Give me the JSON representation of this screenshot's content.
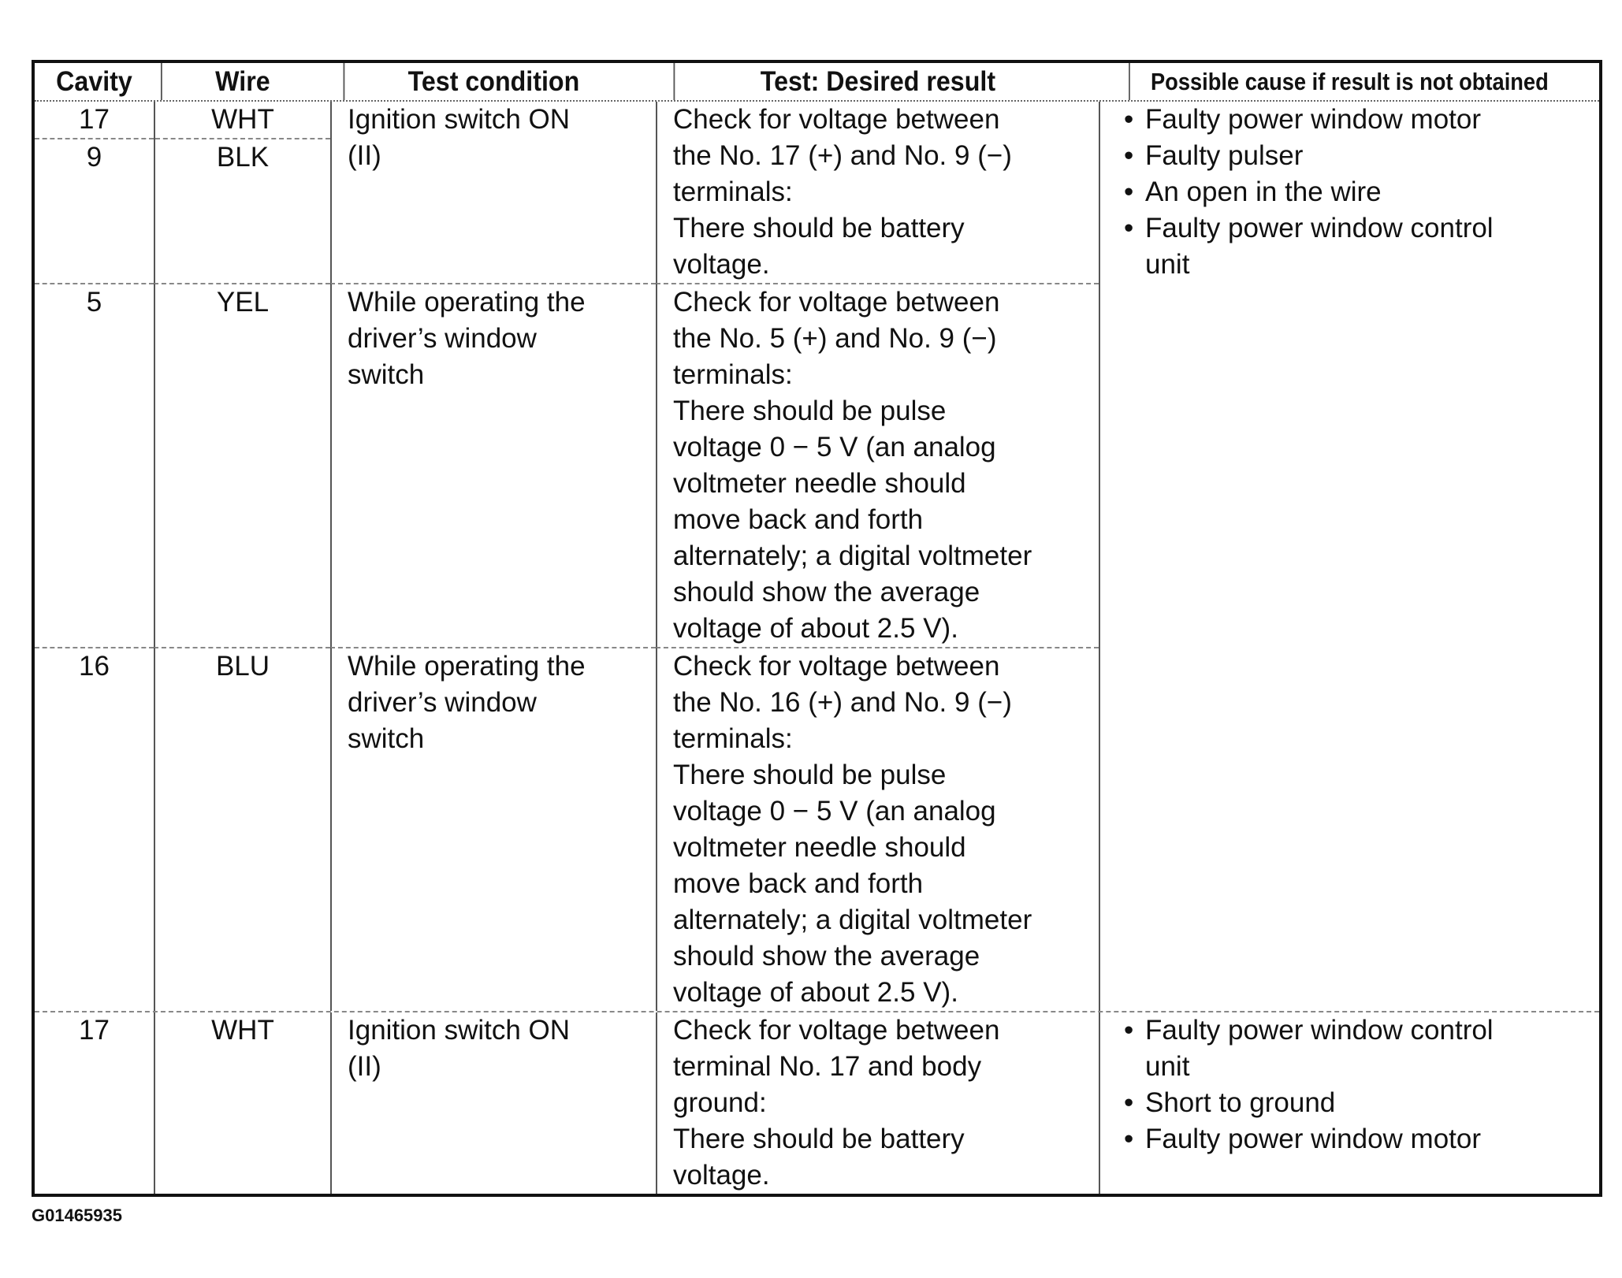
{
  "headers": [
    "Cavity",
    "Wire",
    "Test condition",
    "Test: Desired result",
    "Possible cause if result is not obtained"
  ],
  "rows": [
    {
      "cavity": [
        "17",
        "9"
      ],
      "wire": [
        "WHT",
        "BLK"
      ],
      "condition": [
        "Ignition switch ON",
        "(II)"
      ],
      "result": [
        "Check for voltage between",
        "the No. 17 (+) and No. 9 (−)",
        "terminals:",
        "There should be battery",
        "voltage."
      ],
      "causes": [
        [
          "Faulty power window motor"
        ],
        [
          "Faulty pulser"
        ],
        [
          "An open in the wire"
        ],
        [
          "Faulty power window control",
          "unit"
        ]
      ]
    },
    {
      "cavity": [
        "5"
      ],
      "wire": [
        "YEL"
      ],
      "condition": [
        "While operating the",
        "driver’s window",
        "switch"
      ],
      "result": [
        "Check for voltage between",
        "the No. 5 (+) and No. 9 (−)",
        "terminals:",
        "There should be pulse",
        "voltage 0 − 5 V (an analog",
        "voltmeter needle should",
        "move back and forth",
        "alternately; a digital voltmeter",
        "should show the average",
        "voltage of about 2.5 V)."
      ],
      "causes": []
    },
    {
      "cavity": [
        "16"
      ],
      "wire": [
        "BLU"
      ],
      "condition": [
        "While operating the",
        "driver’s window",
        "switch"
      ],
      "result": [
        "Check for voltage between",
        "the No. 16 (+) and No. 9 (−)",
        "terminals:",
        "There should be pulse",
        "voltage 0 − 5 V (an analog",
        "voltmeter needle should",
        "move back and forth",
        "alternately; a digital voltmeter",
        "should show the average",
        "voltage of about 2.5 V)."
      ],
      "causes": []
    },
    {
      "cavity": [
        "17"
      ],
      "wire": [
        "WHT"
      ],
      "condition": [
        "Ignition switch ON",
        "(II)"
      ],
      "result": [
        "Check for voltage between",
        "terminal No. 17 and body",
        "ground:",
        "There should be battery",
        "voltage."
      ],
      "causes": [
        [
          "Faulty power window control",
          "unit"
        ],
        [
          "Short to ground"
        ],
        [
          "Faulty power window motor"
        ]
      ]
    }
  ],
  "figure_code": "G01465935"
}
